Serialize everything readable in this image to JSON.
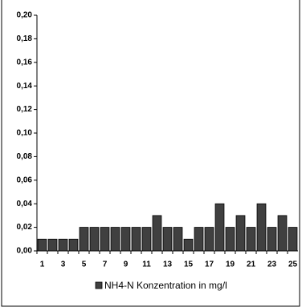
{
  "chart_data": {
    "type": "bar",
    "categories": [
      "1",
      null,
      "3",
      null,
      "5",
      null,
      "7",
      null,
      "9",
      null,
      "11",
      null,
      "13",
      null,
      "15",
      null,
      "17",
      null,
      "19",
      null,
      "21",
      null,
      "23",
      null,
      "25"
    ],
    "series": [
      {
        "name": "NH4-N Konzentration in mg/l",
        "color": "#404040",
        "values": [
          0.01,
          0.01,
          0.01,
          0.01,
          0.02,
          0.02,
          0.02,
          0.02,
          0.02,
          0.02,
          0.02,
          0.03,
          0.02,
          0.02,
          0.01,
          0.02,
          0.02,
          0.04,
          0.02,
          0.03,
          0.02,
          0.04,
          0.02,
          0.03,
          0.02
        ]
      }
    ],
    "ylim": [
      0,
      0.2
    ],
    "yticks": [
      {
        "value": 0,
        "label": "0,00"
      },
      {
        "value": 0.02,
        "label": "0,02"
      },
      {
        "value": 0.04,
        "label": "0,04"
      },
      {
        "value": 0.06,
        "label": "0,06"
      },
      {
        "value": 0.08,
        "label": "0,08"
      },
      {
        "value": 0.1,
        "label": "0,10"
      },
      {
        "value": 0.12,
        "label": "0,12"
      },
      {
        "value": 0.14,
        "label": "0,14"
      },
      {
        "value": 0.16,
        "label": "0,16"
      },
      {
        "value": 0.18,
        "label": "0,18"
      },
      {
        "value": 0.2,
        "label": "0,20"
      }
    ],
    "legend": "bottom"
  }
}
